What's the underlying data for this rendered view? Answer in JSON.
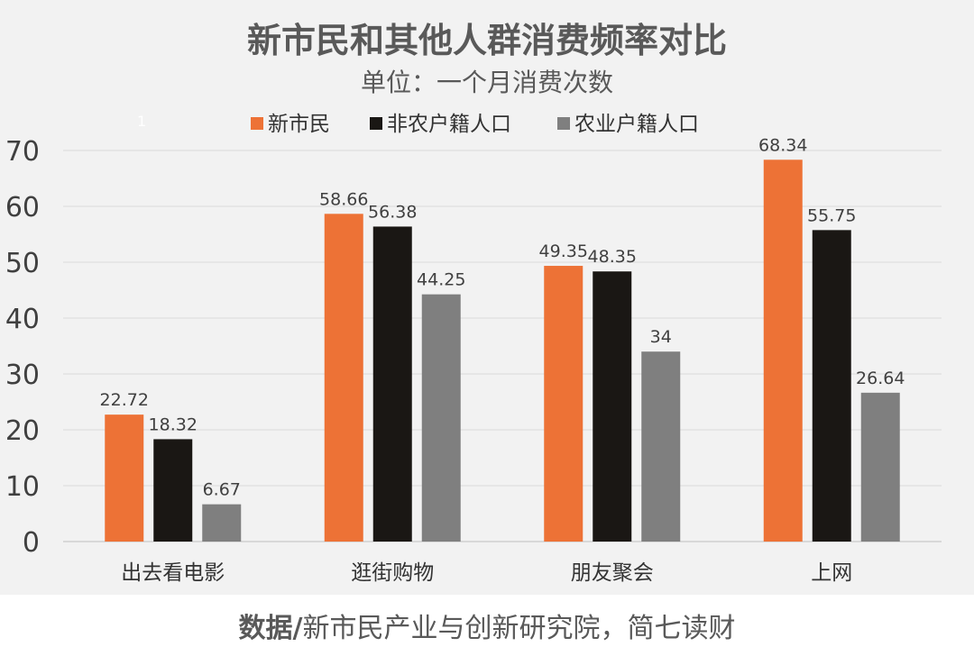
{
  "title": "新市民和其他人群消费频率对比",
  "subtitle": "单位：一个月消费次数",
  "marker": "1",
  "source": {
    "bold": "数据/",
    "text": "新市民产业与创新研究院，简七读财"
  },
  "colors": {
    "background": "#f2f2f2",
    "grid": "#d9d9d9",
    "text": "#333333"
  },
  "chart_data": {
    "type": "bar",
    "categories": [
      "出去看电影",
      "逛街购物",
      "朋友聚会",
      "上网"
    ],
    "series": [
      {
        "name": "新市民",
        "color": "#ed7236",
        "values": [
          22.72,
          58.66,
          49.35,
          68.34
        ],
        "labels": [
          "22.72",
          "58.66",
          "49.35",
          "68.34"
        ]
      },
      {
        "name": "非农户籍人口",
        "color": "#1a1714",
        "values": [
          18.32,
          56.38,
          48.35,
          55.75
        ],
        "labels": [
          "18.32",
          "56.38",
          "48.35",
          "55.75"
        ]
      },
      {
        "name": "农业户籍人口",
        "color": "#7f7f7f",
        "values": [
          6.67,
          44.25,
          34,
          26.64
        ],
        "labels": [
          "6.67",
          "44.25",
          "34",
          "26.64"
        ]
      }
    ],
    "yticks": [
      0,
      10,
      20,
      30,
      40,
      50,
      60,
      70
    ],
    "ylim": [
      0,
      70
    ],
    "grid": true,
    "legend": "top"
  }
}
